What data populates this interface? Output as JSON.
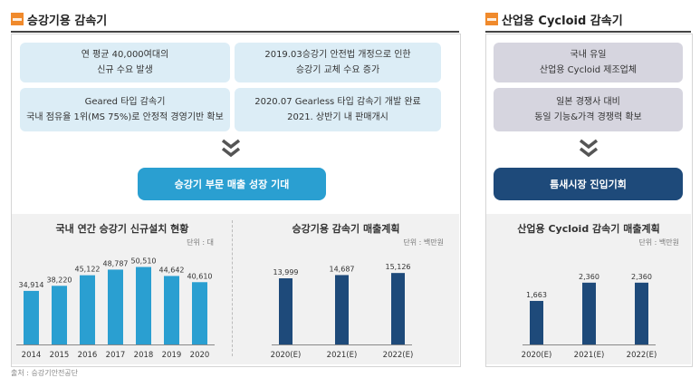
{
  "left_section": {
    "title": "승강기용 감속기",
    "boxes": [
      {
        "line1": "연 평균 40,000여대의",
        "line2": "신규 수요 발생"
      },
      {
        "line1": "2019.03승강기 안전법 개정으로 인한",
        "line2": "승강기 교체 수요 증가"
      },
      {
        "line1": "Geared 타입 감속기",
        "line2": "국내 점유율 1위(MS 75%)로 안정적 경영기반 확보"
      },
      {
        "line1": "2020.07 Gearless 타입 감속기 개발 완료",
        "line2": "2021. 상반기 내 판매개시"
      }
    ],
    "banner": "승강기 부문 매출 성장 기대"
  },
  "right_section": {
    "title": "산업용 Cycloid 감속기",
    "boxes": [
      {
        "line1": "국내 유일",
        "line2": "산업용 Cycloid 제조업체"
      },
      {
        "line1": "일본 경쟁사 대비",
        "line2": "동일 기능&가격 경쟁력 확보"
      }
    ],
    "banner": "틈새시장 진입기회"
  },
  "colors": {
    "accent": "#f08a2c",
    "light_bar": "#2a9fd1",
    "dark_bar": "#1e4a7a",
    "blue_box": "#dcedf6",
    "gray_box": "#d6d5df"
  },
  "source": "출처 : 승강기안전공단",
  "chart_data": [
    {
      "type": "bar",
      "title": "국내 연간 승강기 신규설치 현황",
      "unit": "단위 : 대",
      "categories": [
        "2014",
        "2015",
        "2016",
        "2017",
        "2018",
        "2019",
        "2020"
      ],
      "values": [
        34914,
        38220,
        45122,
        48787,
        50510,
        44642,
        40610
      ],
      "value_labels": [
        "34,914",
        "38,220",
        "45,122",
        "48,787",
        "50,510",
        "44,642",
        "40,610"
      ],
      "color": "#2a9fd1"
    },
    {
      "type": "bar",
      "title": "승강기용 감속기 매출계획",
      "unit": "단위 : 백만원",
      "categories": [
        "2020(E)",
        "2021(E)",
        "2022(E)"
      ],
      "values": [
        13999,
        14687,
        15126
      ],
      "value_labels": [
        "13,999",
        "14,687",
        "15,126"
      ],
      "color": "#1e4a7a"
    },
    {
      "type": "bar",
      "title": "산업용 Cycloid 감속기 매출계획",
      "unit": "단위 : 백만원",
      "categories": [
        "2020(E)",
        "2021(E)",
        "2022(E)"
      ],
      "values": [
        1663,
        2360,
        2360
      ],
      "value_labels": [
        "1,663",
        "2,360",
        "2,360"
      ],
      "color": "#1e4a7a"
    }
  ]
}
